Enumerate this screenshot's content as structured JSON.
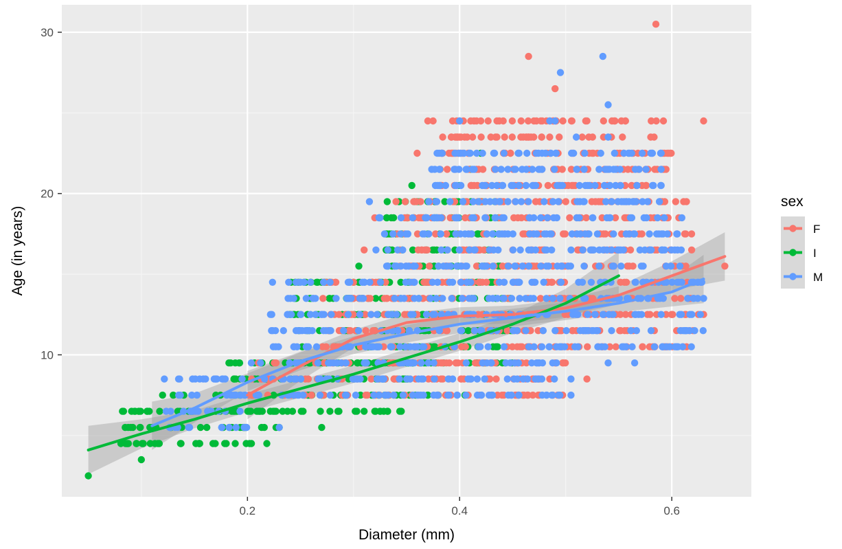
{
  "chart_data": {
    "type": "scatter",
    "xlabel": "Diameter (mm)",
    "ylabel": "Age (in years)",
    "xlim": [
      0.025,
      0.675
    ],
    "ylim": [
      1.2,
      31.7
    ],
    "x_ticks": [
      {
        "value": 0.2,
        "label": "0.2"
      },
      {
        "value": 0.4,
        "label": "0.4"
      },
      {
        "value": 0.6,
        "label": "0.6"
      }
    ],
    "y_ticks": [
      {
        "value": 10,
        "label": "10"
      },
      {
        "value": 20,
        "label": "20"
      },
      {
        "value": 30,
        "label": "30"
      }
    ],
    "x_minor": [
      0.1,
      0.3,
      0.5
    ],
    "y_minor": [
      5,
      15,
      25
    ],
    "grid": true,
    "legend": {
      "title": "sex",
      "position": "right",
      "entries": [
        "F",
        "I",
        "M"
      ]
    },
    "series": [
      {
        "name": "F",
        "color": "#F8766D",
        "regions": [
          {
            "x": [
              0.2,
              0.5
            ],
            "y": [
              7.5,
              9.5
            ]
          },
          {
            "x": [
              0.27,
              0.62
            ],
            "y": [
              10.5,
              14.5
            ]
          },
          {
            "x": [
              0.34,
              0.62
            ],
            "y": [
              15.5,
              19.5
            ]
          },
          {
            "x": [
              0.38,
              0.6
            ],
            "y": [
              20.5,
              24.5
            ]
          }
        ],
        "points": [
          [
            0.585,
            30.5
          ],
          [
            0.465,
            28.5
          ],
          [
            0.49,
            26.5
          ],
          [
            0.63,
            24.5
          ],
          [
            0.375,
            24.5
          ],
          [
            0.37,
            24.5
          ],
          [
            0.42,
            24.5
          ],
          [
            0.47,
            24.5
          ],
          [
            0.52,
            24.5
          ],
          [
            0.46,
            23.5
          ],
          [
            0.525,
            22.5
          ],
          [
            0.36,
            22.5
          ],
          [
            0.39,
            22.5
          ],
          [
            0.65,
            15.5
          ],
          [
            0.625,
            12.5
          ],
          [
            0.63,
            12.5
          ],
          [
            0.52,
            8.5
          ],
          [
            0.485,
            8.5
          ],
          [
            0.455,
            7.5
          ],
          [
            0.475,
            7.5
          ],
          [
            0.3,
            14.5
          ],
          [
            0.305,
            13.5
          ],
          [
            0.31,
            16.5
          ],
          [
            0.32,
            18.5
          ],
          [
            0.34,
            19.5
          ]
        ],
        "smooth": [
          [
            0.2,
            7.5
          ],
          [
            0.25,
            9.3
          ],
          [
            0.3,
            11.0
          ],
          [
            0.35,
            12.0
          ],
          [
            0.4,
            12.4
          ],
          [
            0.45,
            12.5
          ],
          [
            0.5,
            12.9
          ],
          [
            0.55,
            13.7
          ],
          [
            0.6,
            14.9
          ],
          [
            0.65,
            16.1
          ]
        ]
      },
      {
        "name": "I",
        "color": "#00BA38",
        "regions": [
          {
            "x": [
              0.08,
              0.23
            ],
            "y": [
              4.5,
              6.5
            ]
          },
          {
            "x": [
              0.17,
              0.36
            ],
            "y": [
              6.5,
              9.5
            ]
          },
          {
            "x": [
              0.24,
              0.45
            ],
            "y": [
              9.5,
              14.5
            ]
          },
          {
            "x": [
              0.33,
              0.44
            ],
            "y": [
              15.5,
              19.5
            ]
          }
        ],
        "points": [
          [
            0.05,
            2.5
          ],
          [
            0.1,
            3.5
          ],
          [
            0.09,
            5.5
          ],
          [
            0.11,
            5.5
          ],
          [
            0.085,
            4.5
          ],
          [
            0.12,
            7.5
          ],
          [
            0.13,
            7.5
          ],
          [
            0.14,
            7.5
          ],
          [
            0.155,
            4.5
          ],
          [
            0.18,
            4.5
          ],
          [
            0.245,
            14.5
          ],
          [
            0.305,
            15.5
          ],
          [
            0.355,
            20.5
          ],
          [
            0.4,
            20.5
          ],
          [
            0.42,
            22.5
          ],
          [
            0.41,
            21.5
          ],
          [
            0.32,
            6.5
          ],
          [
            0.345,
            6.5
          ],
          [
            0.27,
            5.5
          ],
          [
            0.23,
            5.5
          ],
          [
            0.29,
            7.5
          ],
          [
            0.37,
            7.5
          ],
          [
            0.38,
            7.5
          ],
          [
            0.405,
            7.5
          ],
          [
            0.37,
            19.5
          ],
          [
            0.33,
            17.5
          ],
          [
            0.36,
            19.5
          ],
          [
            0.37,
            7.5
          ],
          [
            0.325,
            6.5
          ]
        ],
        "smooth": [
          [
            0.05,
            4.1
          ],
          [
            0.1,
            5.1
          ],
          [
            0.15,
            6.0
          ],
          [
            0.2,
            7.0
          ],
          [
            0.25,
            7.9
          ],
          [
            0.3,
            8.8
          ],
          [
            0.35,
            9.8
          ],
          [
            0.4,
            10.8
          ],
          [
            0.45,
            11.9
          ],
          [
            0.5,
            13.2
          ],
          [
            0.55,
            14.9
          ]
        ]
      },
      {
        "name": "M",
        "color": "#619CFF",
        "regions": [
          {
            "x": [
              0.12,
              0.2
            ],
            "y": [
              5.5,
              8.5
            ]
          },
          {
            "x": [
              0.2,
              0.5
            ],
            "y": [
              7.5,
              9.5
            ]
          },
          {
            "x": [
              0.22,
              0.63
            ],
            "y": [
              10.5,
              14.5
            ]
          },
          {
            "x": [
              0.32,
              0.61
            ],
            "y": [
              15.5,
              18.5
            ]
          },
          {
            "x": [
              0.37,
              0.59
            ],
            "y": [
              19.5,
              22.5
            ]
          }
        ],
        "points": [
          [
            0.535,
            28.5
          ],
          [
            0.495,
            27.5
          ],
          [
            0.54,
            25.5
          ],
          [
            0.4,
            24.5
          ],
          [
            0.485,
            24.5
          ],
          [
            0.49,
            24.5
          ],
          [
            0.54,
            23.5
          ],
          [
            0.51,
            23.5
          ],
          [
            0.59,
            22.5
          ],
          [
            0.555,
            22.5
          ],
          [
            0.56,
            22.5
          ],
          [
            0.315,
            19.5
          ],
          [
            0.155,
            8.5
          ],
          [
            0.17,
            8.5
          ],
          [
            0.505,
            7.5
          ],
          [
            0.505,
            8.5
          ],
          [
            0.565,
            9.5
          ],
          [
            0.54,
            9.5
          ],
          [
            0.25,
            14.5
          ],
          [
            0.185,
            7.5
          ],
          [
            0.21,
            7.5
          ],
          [
            0.195,
            8.5
          ],
          [
            0.23,
            5.5
          ],
          [
            0.615,
            13.5
          ],
          [
            0.63,
            13.5
          ],
          [
            0.36,
            7.5
          ],
          [
            0.39,
            7.5
          ],
          [
            0.43,
            7.5
          ]
        ],
        "smooth": [
          [
            0.11,
            5.6
          ],
          [
            0.15,
            6.7
          ],
          [
            0.2,
            8.3
          ],
          [
            0.25,
            9.6
          ],
          [
            0.3,
            10.6
          ],
          [
            0.35,
            11.3
          ],
          [
            0.4,
            11.9
          ],
          [
            0.45,
            12.3
          ],
          [
            0.5,
            12.7
          ],
          [
            0.55,
            13.2
          ],
          [
            0.6,
            13.9
          ],
          [
            0.63,
            14.7
          ]
        ]
      }
    ]
  }
}
